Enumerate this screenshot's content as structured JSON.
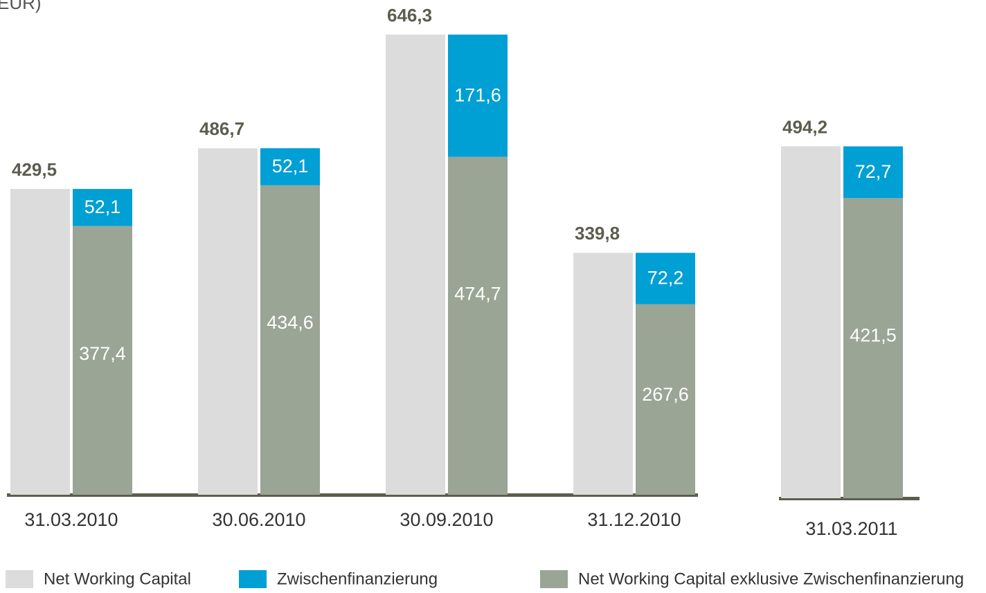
{
  "chart_data": {
    "type": "bar",
    "title": "EUR)",
    "categories": [
      "31.03.2010",
      "30.06.2010",
      "30.09.2010",
      "31.12.2010",
      "31.03.2011"
    ],
    "series": [
      {
        "name": "Net Working Capital",
        "color": "#dcdcdc",
        "values": [
          429.5,
          486.7,
          646.3,
          339.8,
          494.2
        ],
        "value_labels": [
          "429,5",
          "486,7",
          "646,3",
          "339,8",
          "494,2"
        ]
      },
      {
        "name": "Zwischenfinanzierung",
        "color": "#009fd4",
        "values": [
          52.1,
          52.1,
          171.6,
          72.2,
          72.7
        ],
        "value_labels": [
          "52,1",
          "52,1",
          "171,6",
          "72,2",
          "72,7"
        ]
      },
      {
        "name": "Net Working Capital exklusive Zwischenfinanzierung",
        "color": "#9aa595",
        "values": [
          377.4,
          434.6,
          474.7,
          267.6,
          421.5
        ],
        "value_labels": [
          "377,4",
          "434,6",
          "474,7",
          "267,6",
          "421,5"
        ]
      }
    ]
  }
}
